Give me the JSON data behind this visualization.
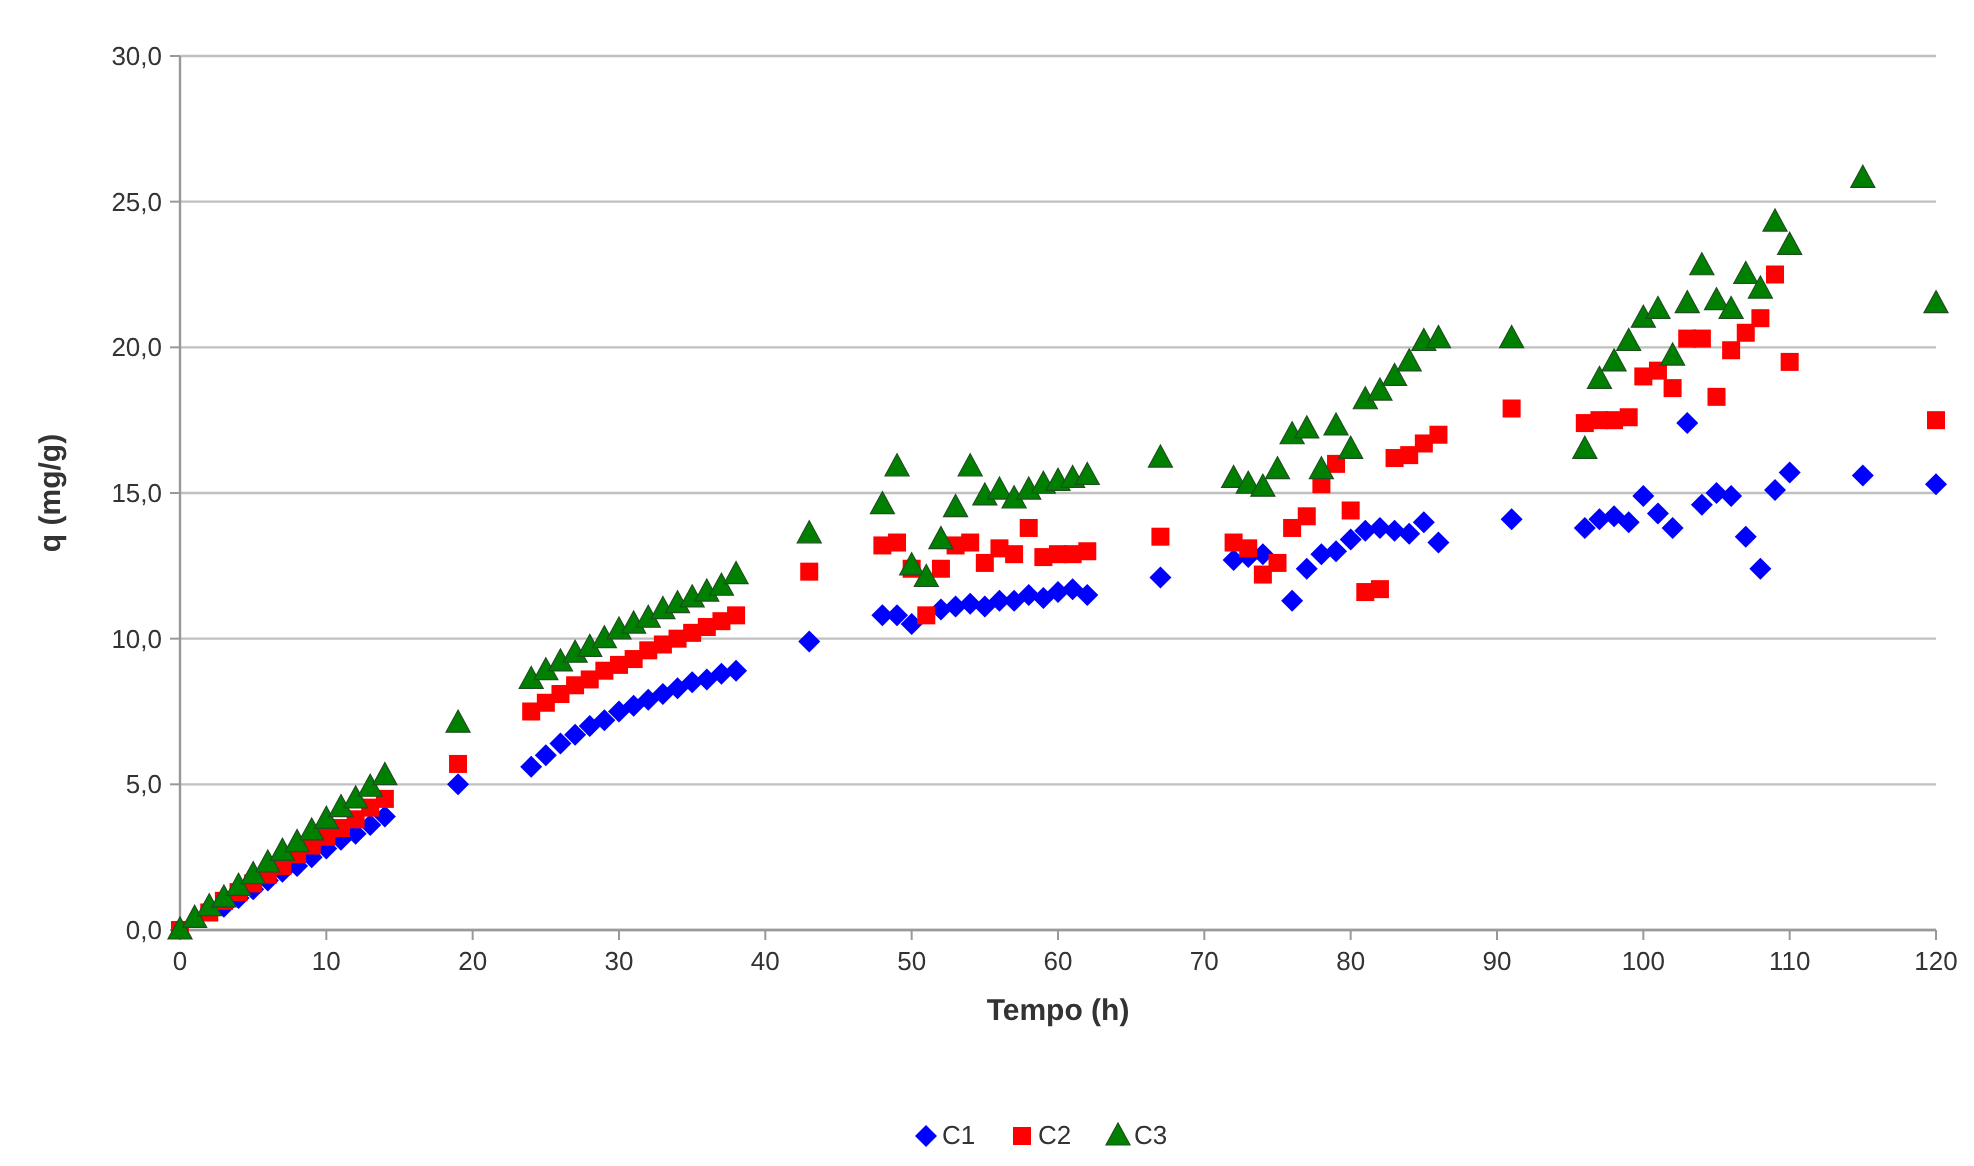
{
  "chart_data": {
    "type": "scatter",
    "xlabel": "Tempo (h)",
    "ylabel": "q (mg/g)",
    "x": [
      0,
      1,
      2,
      3,
      4,
      5,
      6,
      7,
      8,
      9,
      10,
      11,
      12,
      13,
      14,
      19,
      24,
      25,
      26,
      27,
      28,
      29,
      30,
      31,
      32,
      33,
      34,
      35,
      36,
      37,
      38,
      43,
      48,
      49,
      50,
      51,
      52,
      53,
      54,
      55,
      56,
      57,
      58,
      59,
      60,
      61,
      62,
      67,
      72,
      73,
      74,
      75,
      76,
      77,
      78,
      79,
      80,
      81,
      82,
      83,
      84,
      85,
      86,
      91,
      96,
      97,
      98,
      99,
      100,
      101,
      102,
      103,
      104,
      105,
      106,
      107,
      108,
      109,
      110,
      115,
      120
    ],
    "series": [
      {
        "name": "C1",
        "color": "#0000ff",
        "marker": "diamond",
        "values": [
          null,
          null,
          null,
          0.8,
          1.1,
          1.4,
          1.7,
          2.0,
          2.2,
          2.5,
          2.8,
          3.1,
          3.3,
          3.6,
          3.9,
          5.0,
          5.6,
          6.0,
          6.4,
          6.7,
          7.0,
          7.2,
          7.5,
          7.7,
          7.9,
          8.1,
          8.3,
          8.5,
          8.6,
          8.8,
          8.9,
          9.9,
          10.8,
          10.8,
          10.5,
          null,
          11.0,
          11.1,
          11.2,
          11.1,
          11.3,
          11.3,
          11.5,
          11.4,
          11.6,
          11.7,
          11.5,
          12.1,
          12.7,
          12.8,
          12.9,
          null,
          11.3,
          12.4,
          12.9,
          13.0,
          13.4,
          13.7,
          13.8,
          13.7,
          13.6,
          14.0,
          13.3,
          14.1,
          13.8,
          14.1,
          14.2,
          14.0,
          14.9,
          14.3,
          13.8,
          17.4,
          14.6,
          15.0,
          14.9,
          13.5,
          12.4,
          15.1,
          15.7,
          15.6,
          15.3
        ]
      },
      {
        "name": "C2",
        "color": "#ff0000",
        "marker": "square",
        "values": [
          0,
          null,
          0.6,
          1.0,
          1.3,
          1.6,
          1.9,
          2.2,
          2.6,
          2.9,
          3.2,
          3.5,
          3.8,
          4.2,
          4.5,
          5.7,
          7.5,
          7.8,
          8.1,
          8.4,
          8.6,
          8.9,
          9.1,
          9.3,
          9.6,
          9.8,
          10.0,
          10.2,
          10.4,
          10.6,
          10.8,
          12.3,
          13.2,
          13.3,
          12.4,
          10.8,
          12.4,
          13.2,
          13.3,
          12.6,
          13.1,
          12.9,
          13.8,
          12.8,
          12.9,
          12.9,
          13.0,
          13.5,
          13.3,
          13.1,
          12.2,
          12.6,
          13.8,
          14.2,
          15.3,
          16.0,
          14.4,
          11.6,
          11.7,
          16.2,
          16.3,
          16.7,
          17.0,
          17.9,
          17.4,
          17.5,
          17.5,
          17.6,
          19.0,
          19.2,
          18.6,
          20.3,
          20.3,
          18.3,
          19.9,
          20.5,
          21.0,
          22.5,
          19.5,
          null,
          17.5
        ]
      },
      {
        "name": "C3",
        "color": "#008000",
        "marker": "triangle",
        "values": [
          0,
          0.4,
          0.8,
          1.1,
          1.5,
          1.9,
          2.3,
          2.7,
          3.0,
          3.4,
          3.8,
          4.2,
          4.5,
          4.9,
          5.3,
          7.1,
          8.6,
          8.9,
          9.2,
          9.5,
          9.7,
          10.0,
          10.3,
          10.5,
          10.7,
          11.0,
          11.2,
          11.4,
          11.6,
          11.8,
          12.2,
          13.6,
          14.6,
          15.9,
          12.5,
          12.1,
          13.4,
          14.5,
          15.9,
          14.9,
          15.1,
          14.8,
          15.1,
          15.3,
          15.4,
          15.5,
          15.6,
          16.2,
          15.5,
          15.3,
          15.2,
          15.8,
          17.0,
          17.2,
          15.8,
          17.3,
          16.5,
          18.2,
          18.5,
          19.0,
          19.5,
          20.2,
          20.3,
          20.3,
          16.5,
          18.9,
          19.5,
          20.2,
          21.0,
          21.3,
          19.7,
          21.5,
          22.8,
          21.6,
          21.3,
          22.5,
          22.0,
          24.3,
          23.5,
          25.8,
          21.5
        ]
      }
    ],
    "xlim": [
      0,
      120
    ],
    "xticks": [
      0,
      10,
      20,
      30,
      40,
      50,
      60,
      70,
      80,
      90,
      100,
      110,
      120
    ],
    "ylim": [
      0,
      30
    ],
    "yticks": [
      {
        "value": 0,
        "label": "0,0"
      },
      {
        "value": 5,
        "label": "5,0"
      },
      {
        "value": 10,
        "label": "10,0"
      },
      {
        "value": 15,
        "label": "15,0"
      },
      {
        "value": 20,
        "label": "20,0"
      },
      {
        "value": 25,
        "label": "25,0"
      },
      {
        "value": 30,
        "label": "30,0"
      }
    ],
    "grid": "y",
    "legend": "bottom"
  }
}
